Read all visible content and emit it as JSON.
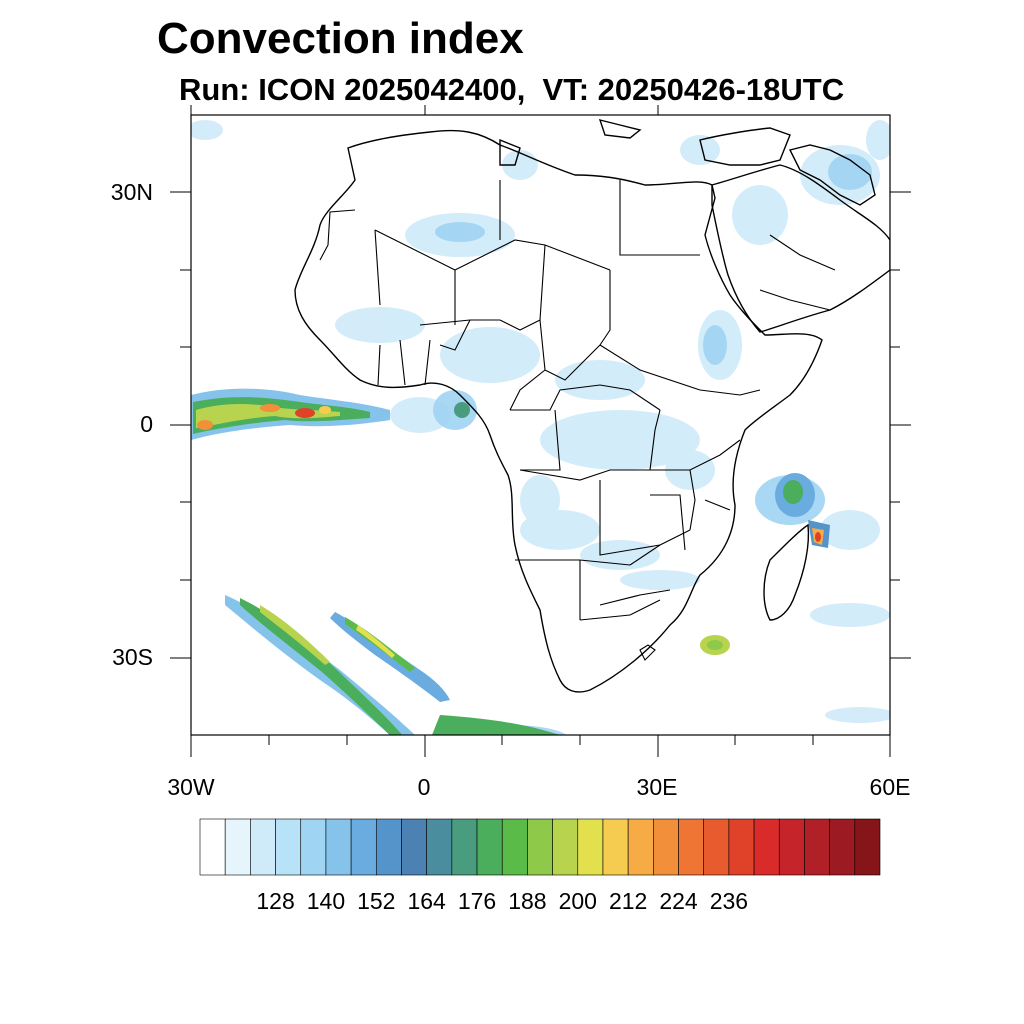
{
  "title": "Convection index",
  "subtitle": "Run: ICON 2025042400,  VT: 20250426-18UTC",
  "map": {
    "lat_labels": [
      {
        "text": "30N",
        "lat": 30
      },
      {
        "text": "0",
        "lat": 0
      },
      {
        "text": "30S",
        "lat": -30
      }
    ],
    "lon_labels": [
      {
        "text": "30W",
        "lon": -30
      },
      {
        "text": "0",
        "lon": 0
      },
      {
        "text": "30E",
        "lon": 30
      },
      {
        "text": "60E",
        "lon": 60
      }
    ],
    "extent": {
      "lon_min": -30,
      "lon_max": 60,
      "lat_min": -40,
      "lat_max": 40
    }
  },
  "colorbar": {
    "colors": [
      "#ffffff",
      "#e6f4fc",
      "#cfeaf9",
      "#b8e2f7",
      "#9fd4f2",
      "#86c3ea",
      "#6aabe0",
      "#5594cb",
      "#4b82b3",
      "#4a8d9e",
      "#4a9c7e",
      "#4aae5c",
      "#5bbb48",
      "#8ec94a",
      "#b8d44e",
      "#e3e04e",
      "#f6cc50",
      "#f6ab44",
      "#f28f3a",
      "#ee7534",
      "#e75b2f",
      "#e04129",
      "#d92b2a",
      "#c6242b",
      "#b11f27",
      "#9c1b22",
      "#861519"
    ],
    "labels": [
      "128",
      "140",
      "152",
      "164",
      "176",
      "188",
      "200",
      "212",
      "224",
      "236"
    ]
  }
}
